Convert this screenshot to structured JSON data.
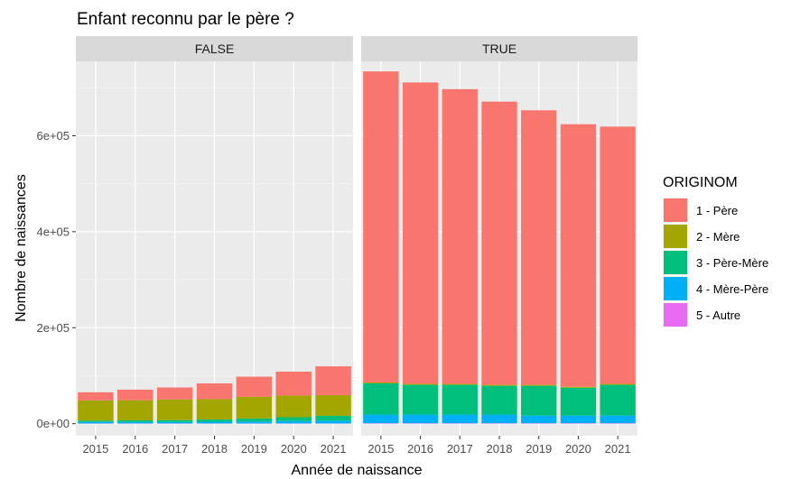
{
  "chart_data": {
    "type": "bar",
    "stacked": true,
    "faceted": true,
    "title": "Enfant reconnu par le père ?",
    "xlabel": "Année de naissance",
    "ylabel": "Nombre de naissances",
    "ylim": [
      -25000,
      755000
    ],
    "yticks": [
      0,
      200000,
      400000,
      600000
    ],
    "ytick_labels": [
      "0e+00",
      "2e+05",
      "4e+05",
      "6e+05"
    ],
    "grid": true,
    "legend_position": "right",
    "legend_title": "ORIGINOM",
    "categories": [
      "2015",
      "2016",
      "2017",
      "2018",
      "2019",
      "2020",
      "2021"
    ],
    "series_keys": [
      {
        "name": "1 - Père",
        "color": "#F8766D"
      },
      {
        "name": "2 - Mère",
        "color": "#A3A500"
      },
      {
        "name": "3 - Père-Mère",
        "color": "#00BF7D"
      },
      {
        "name": "4 - Mère-Père",
        "color": "#00B0F6"
      },
      {
        "name": "5 - Autre",
        "color": "#E76BF3"
      }
    ],
    "facets": [
      {
        "label": "FALSE",
        "series": [
          {
            "name": "1 - Père",
            "values": [
              17000,
              22000,
              25000,
              33000,
              42000,
              50000,
              60000
            ]
          },
          {
            "name": "2 - Mère",
            "values": [
              42000,
              42000,
              43000,
              42000,
              45000,
              45000,
              43000
            ]
          },
          {
            "name": "3 - Père-Mère",
            "values": [
              3000,
              3500,
              4000,
              5000,
              6500,
              8000,
              10000
            ]
          },
          {
            "name": "4 - Mère-Père",
            "values": [
              3000,
              3000,
              3000,
              3500,
              4000,
              5000,
              6000
            ]
          },
          {
            "name": "5 - Autre",
            "values": [
              500,
              500,
              500,
              500,
              500,
              500,
              500
            ]
          }
        ]
      },
      {
        "label": "TRUE",
        "series": [
          {
            "name": "1 - Père",
            "values": [
              648000,
              628000,
              614000,
              590000,
              572000,
              547000,
              536000
            ]
          },
          {
            "name": "2 - Mère",
            "values": [
              2000,
              2000,
              2000,
              2000,
              2000,
              2000,
              2000
            ]
          },
          {
            "name": "3 - Père-Mère",
            "values": [
              65000,
              62000,
              62000,
              60000,
              62000,
              58000,
              64000
            ]
          },
          {
            "name": "4 - Mère-Père",
            "values": [
              18000,
              18000,
              18000,
              18000,
              16000,
              16000,
              16000
            ]
          },
          {
            "name": "5 - Autre",
            "values": [
              1000,
              1000,
              1000,
              1000,
              1000,
              1000,
              1000
            ]
          }
        ]
      }
    ]
  }
}
